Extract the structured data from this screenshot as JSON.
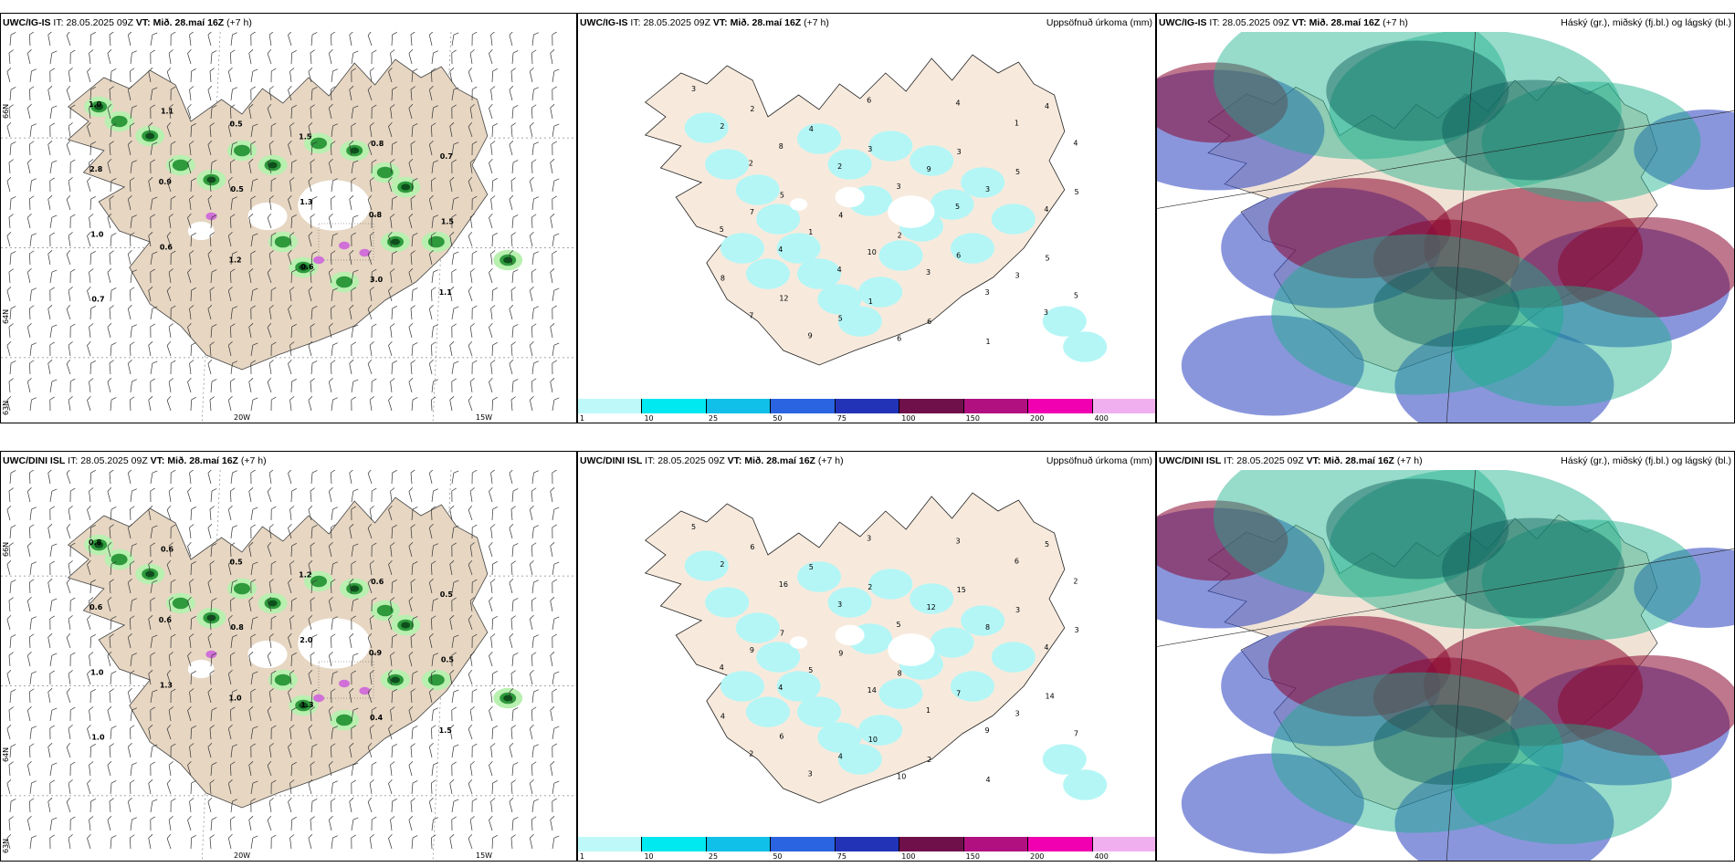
{
  "panels": [
    {
      "model": "UWC/IG-IS",
      "it_label": "IT:",
      "it": "28.05.2025 09Z",
      "vt_label": "VT:",
      "vt": "Mið. 28.maí 16Z",
      "lead": "(+7 h)",
      "right": ""
    },
    {
      "model": "UWC/IG-IS",
      "it_label": "IT:",
      "it": "28.05.2025 09Z",
      "vt_label": "VT:",
      "vt": "Mið. 28.maí 16Z",
      "lead": "(+7 h)",
      "right": "Uppsöfnuð úrkoma (mm)"
    },
    {
      "model": "UWC/IG-IS",
      "it_label": "IT:",
      "it": "28.05.2025 09Z",
      "vt_label": "VT:",
      "vt": "Mið. 28.maí 16Z",
      "lead": "(+7 h)",
      "right": "Háský (gr.), miðský (fj.bl.) og lágský (bl.)"
    },
    {
      "model": "UWC/DINI ISL",
      "it_label": "IT:",
      "it": "28.05.2025 09Z",
      "vt_label": "VT:",
      "vt": "Mið. 28.maí 16Z",
      "lead": "(+7 h)",
      "right": ""
    },
    {
      "model": "UWC/DINI ISL",
      "it_label": "IT:",
      "it": "28.05.2025 09Z",
      "vt_label": "VT:",
      "vt": "Mið. 28.maí 16Z",
      "lead": "(+7 h)",
      "right": "Uppsöfnuð úrkoma (mm)"
    },
    {
      "model": "UWC/DINI ISL",
      "it_label": "IT:",
      "it": "28.05.2025 09Z",
      "vt_label": "VT:",
      "vt": "Mið. 28.maí 16Z",
      "lead": "(+7 h)",
      "right": "Háský (gr.), miðský (fj.bl.) og lágský (bl.)"
    }
  ],
  "axis_labels": {
    "lat66": "66N",
    "lat64": "64N",
    "lat63": "63N",
    "lon20": "20W",
    "lon15": "15W"
  },
  "colorbar": {
    "ticks": [
      "1",
      "10",
      "25",
      "50",
      "75",
      "100",
      "150",
      "200",
      "400"
    ],
    "colors": [
      "#bff8f8",
      "#00e8f0",
      "#10c0e8",
      "#2a64e0",
      "#2233b8",
      "#70104a",
      "#b01080",
      "#f000b0",
      "#f0b0f0"
    ]
  },
  "colors": {
    "land": "#f7eadd",
    "land_dark": "#e6d6c2",
    "precip": "#b4f6f6",
    "green": "#1e7a2c"
  },
  "precip_top": [
    "3",
    "5",
    "1",
    "3",
    "5",
    "2",
    "4",
    "6",
    "5",
    "8",
    "4",
    "2",
    "1",
    "5",
    "12",
    "3",
    "6",
    "4",
    "7",
    "5",
    "9",
    "3",
    "2",
    "1",
    "6",
    "3",
    "5",
    "8",
    "10",
    "4",
    "4",
    "7",
    "2",
    "3",
    "1",
    "5",
    "9",
    "3",
    "3",
    "4",
    "4",
    "6",
    "5",
    "3",
    "2",
    "4"
  ],
  "precip_bot": [
    "5",
    "7",
    "10",
    "15",
    "14",
    "6",
    "9",
    "2",
    "3",
    "4",
    "5",
    "8",
    "4",
    "3",
    "6",
    "2",
    "7",
    "5",
    "9",
    "4",
    "12",
    "3",
    "2",
    "5",
    "10",
    "8",
    "7",
    "16",
    "14",
    "3",
    "4",
    "2",
    "3",
    "1",
    "6",
    "4",
    "3",
    "5",
    "9",
    "2",
    "4",
    "3"
  ],
  "wind_labels_top": [
    "1.0",
    "0.9",
    "1.2",
    "1.5",
    "0.8",
    "1.1",
    "2.8",
    "0.6",
    "0.5",
    "1.3",
    "3.0",
    "0.7",
    "1.0",
    "1.1",
    "0.5",
    "0.6",
    "0.8",
    "1.5",
    "0.7"
  ],
  "wind_labels_bot": [
    "0.8",
    "0.6",
    "1.0",
    "1.2",
    "0.9",
    "1.5",
    "0.6",
    "1.3",
    "0.5",
    "2.0",
    "0.4",
    "0.5",
    "1.0",
    "0.6",
    "0.8",
    "1.3",
    "0.6",
    "0.5",
    "1.0"
  ]
}
